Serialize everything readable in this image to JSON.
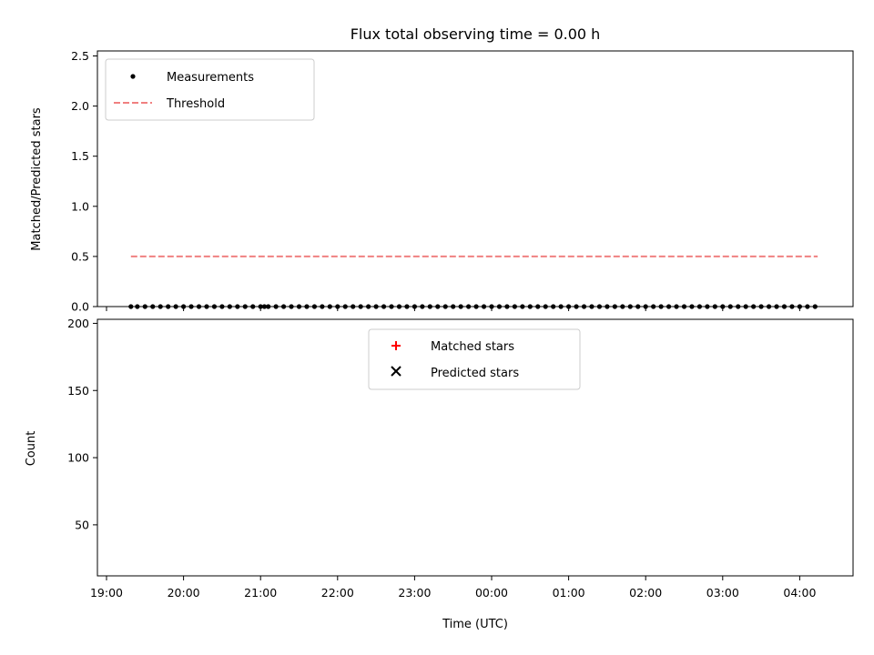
{
  "chart_data": [
    {
      "type": "scatter",
      "title": "Flux total observing time = 0.00 h",
      "ylabel": "Matched/Predicted stars",
      "ylim": [
        0,
        2.55
      ],
      "yticks": [
        0.0,
        0.5,
        1.0,
        1.5,
        2.0,
        2.5
      ],
      "ytick_labels": [
        "0.0",
        "0.5",
        "1.0",
        "1.5",
        "2.0",
        "2.5"
      ],
      "legend": {
        "placement": "top-left",
        "entries": [
          "Measurements",
          "Threshold"
        ]
      },
      "series": [
        {
          "name": "Measurements",
          "marker": "dot",
          "color": "#000000",
          "x": [
            "19:19",
            "19:24",
            "19:30",
            "19:36",
            "19:42",
            "19:48",
            "19:54",
            "20:00",
            "20:06",
            "20:12",
            "20:18",
            "20:24",
            "20:30",
            "20:36",
            "20:42",
            "20:48",
            "20:54",
            "21:00",
            "21:03",
            "21:06",
            "21:12",
            "21:18",
            "21:24",
            "21:30",
            "21:36",
            "21:42",
            "21:48",
            "21:54",
            "22:00",
            "22:06",
            "22:12",
            "22:18",
            "22:24",
            "22:30",
            "22:36",
            "22:42",
            "22:48",
            "22:54",
            "23:00",
            "23:06",
            "23:12",
            "23:18",
            "23:24",
            "23:30",
            "23:36",
            "23:42",
            "23:48",
            "23:54",
            "00:00",
            "00:06",
            "00:12",
            "00:18",
            "00:24",
            "00:30",
            "00:36",
            "00:42",
            "00:48",
            "00:54",
            "01:00",
            "01:06",
            "01:12",
            "01:18",
            "01:24",
            "01:30",
            "01:36",
            "01:42",
            "01:48",
            "01:54",
            "02:00",
            "02:06",
            "02:12",
            "02:18",
            "02:24",
            "02:30",
            "02:36",
            "02:42",
            "02:48",
            "02:54",
            "03:00",
            "03:06",
            "03:12",
            "03:18",
            "03:24",
            "03:30",
            "03:36",
            "03:42",
            "03:48",
            "03:54",
            "04:00",
            "04:06",
            "04:12"
          ],
          "y": [
            0.0,
            0.0,
            0.0,
            0.0,
            0.0,
            0.0,
            0.0,
            0.0,
            0.0,
            0.0,
            0.0,
            0.0,
            0.0,
            0.0,
            0.0,
            0.0,
            0.0,
            0.0,
            0.0,
            0.0,
            0.0,
            0.0,
            0.0,
            0.0,
            0.0,
            0.0,
            0.0,
            0.0,
            0.0,
            0.0,
            0.0,
            0.0,
            0.0,
            0.0,
            0.0,
            0.0,
            0.0,
            0.0,
            0.0,
            0.0,
            0.0,
            0.0,
            0.0,
            0.0,
            0.0,
            0.0,
            0.0,
            0.0,
            0.0,
            0.0,
            0.0,
            0.0,
            0.0,
            0.0,
            0.0,
            0.0,
            0.0,
            0.0,
            0.0,
            0.0,
            0.0,
            0.0,
            0.0,
            0.0,
            0.0,
            0.0,
            0.0,
            0.0,
            0.0,
            0.0,
            0.0,
            0.0,
            0.0,
            0.0,
            0.0,
            0.0,
            0.0,
            0.0,
            0.0,
            0.0,
            0.0,
            0.0,
            0.0,
            0.0,
            0.0,
            0.0,
            0.0,
            0.0,
            0.0,
            0.0,
            0.0
          ]
        },
        {
          "name": "Threshold",
          "marker": "dashed-line",
          "color": "#f08080",
          "x": [
            "19:19",
            "04:14"
          ],
          "y": [
            0.5,
            0.5
          ]
        }
      ]
    },
    {
      "type": "scatter",
      "xlabel": "Time (UTC)",
      "ylabel": "Count",
      "ylim": [
        12,
        203
      ],
      "yticks": [
        50,
        100,
        150,
        200
      ],
      "ytick_labels": [
        "50",
        "100",
        "150",
        "200"
      ],
      "xtick_labels": [
        "19:00",
        "20:00",
        "21:00",
        "22:00",
        "23:00",
        "00:00",
        "01:00",
        "02:00",
        "03:00",
        "04:00"
      ],
      "legend": {
        "placement": "top-center",
        "entries": [
          "Matched stars",
          "Predicted stars"
        ]
      },
      "series": [
        {
          "name": "Matched stars",
          "marker": "plus",
          "color": "#ff0000",
          "x": [],
          "y": []
        },
        {
          "name": "Predicted stars",
          "marker": "x",
          "color": "#000000",
          "x": [],
          "y": []
        }
      ]
    }
  ]
}
